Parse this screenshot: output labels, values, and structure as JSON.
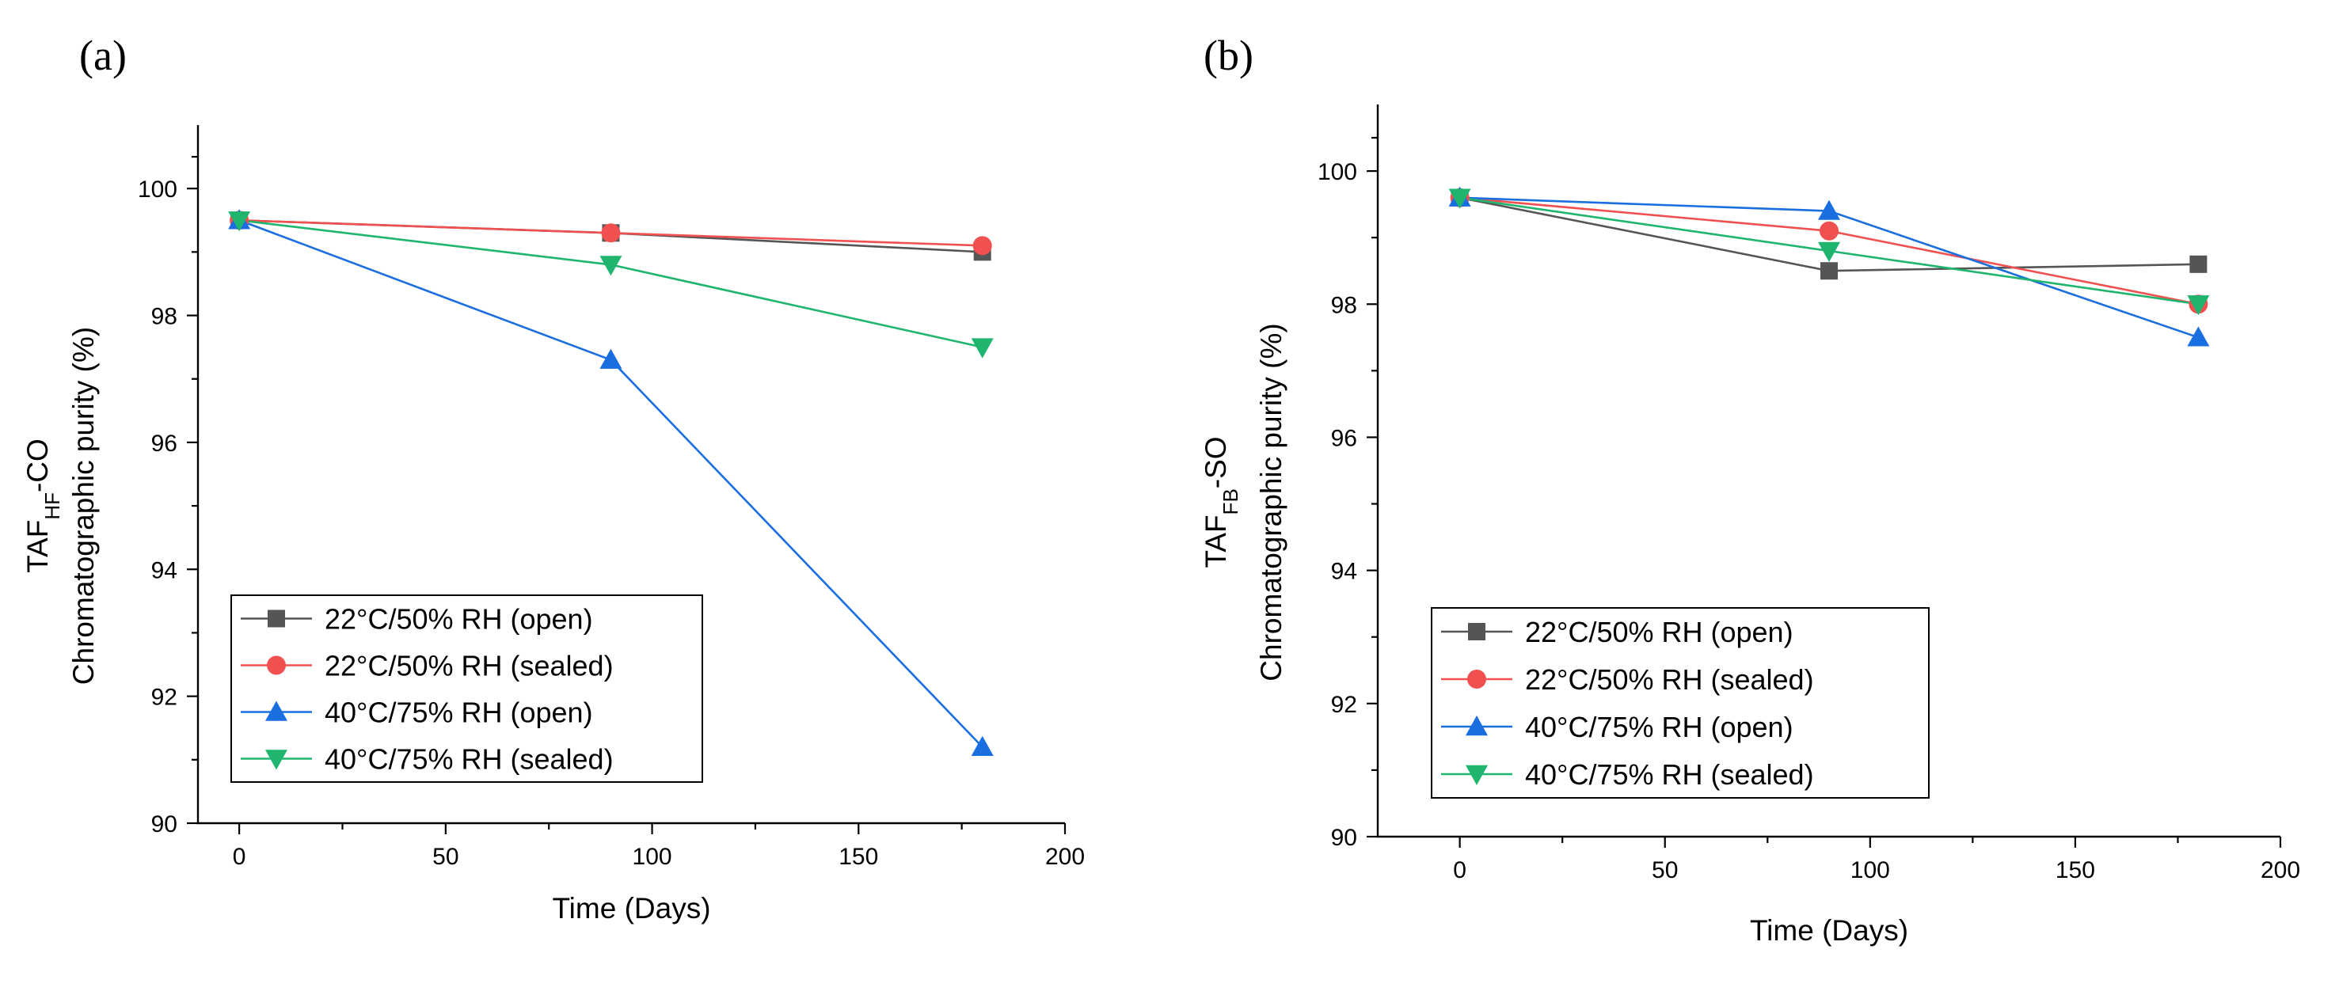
{
  "chart_data": [
    {
      "type": "line",
      "panel_label": "(a)",
      "ylabel_prefix": "TAF",
      "ylabel_sub": "HF",
      "ylabel_suffix": "-CO",
      "ylabel": "Chromatographic purity (%)",
      "xlabel": "Time (Days)",
      "xlim": [
        -10,
        200
      ],
      "ylim": [
        90,
        101
      ],
      "xticks": [
        0,
        50,
        100,
        150,
        200
      ],
      "yticks": [
        90,
        92,
        94,
        96,
        98,
        100
      ],
      "x": [
        0,
        90,
        180
      ],
      "legend_position": "bottom-left",
      "series": [
        {
          "name": "22°C/50% RH (open)",
          "color": "#555555",
          "marker": "square",
          "values": [
            99.5,
            99.3,
            99.0
          ]
        },
        {
          "name": "22°C/50% RH (sealed)",
          "color": "#f05050",
          "marker": "circle",
          "values": [
            99.5,
            99.3,
            99.1
          ]
        },
        {
          "name": "40°C/75% RH (open)",
          "color": "#1a6fe0",
          "marker": "triangle-up",
          "values": [
            99.5,
            97.3,
            91.2
          ]
        },
        {
          "name": "40°C/75% RH (sealed)",
          "color": "#1fb56e",
          "marker": "triangle-down",
          "values": [
            99.5,
            98.8,
            97.5
          ]
        }
      ]
    },
    {
      "type": "line",
      "panel_label": "(b)",
      "ylabel_prefix": "TAF",
      "ylabel_sub": "FB",
      "ylabel_suffix": "-SO",
      "ylabel": "Chromatographic purity (%)",
      "xlabel": "Time (Days)",
      "xlim": [
        -20,
        200
      ],
      "ylim": [
        90,
        101
      ],
      "xticks": [
        0,
        50,
        100,
        150,
        200
      ],
      "yticks": [
        90,
        92,
        94,
        96,
        98,
        100
      ],
      "x": [
        0,
        90,
        180
      ],
      "legend_position": "bottom-left",
      "series": [
        {
          "name": "22°C/50% RH (open)",
          "color": "#555555",
          "marker": "square",
          "values": [
            99.6,
            98.5,
            98.6
          ]
        },
        {
          "name": "22°C/50% RH (sealed)",
          "color": "#f05050",
          "marker": "circle",
          "values": [
            99.6,
            99.1,
            98.0
          ]
        },
        {
          "name": "40°C/75% RH (open)",
          "color": "#1a6fe0",
          "marker": "triangle-up",
          "values": [
            99.6,
            99.4,
            97.5
          ]
        },
        {
          "name": "40°C/75% RH (sealed)",
          "color": "#1fb56e",
          "marker": "triangle-down",
          "values": [
            99.6,
            98.8,
            98.0
          ]
        }
      ]
    }
  ]
}
